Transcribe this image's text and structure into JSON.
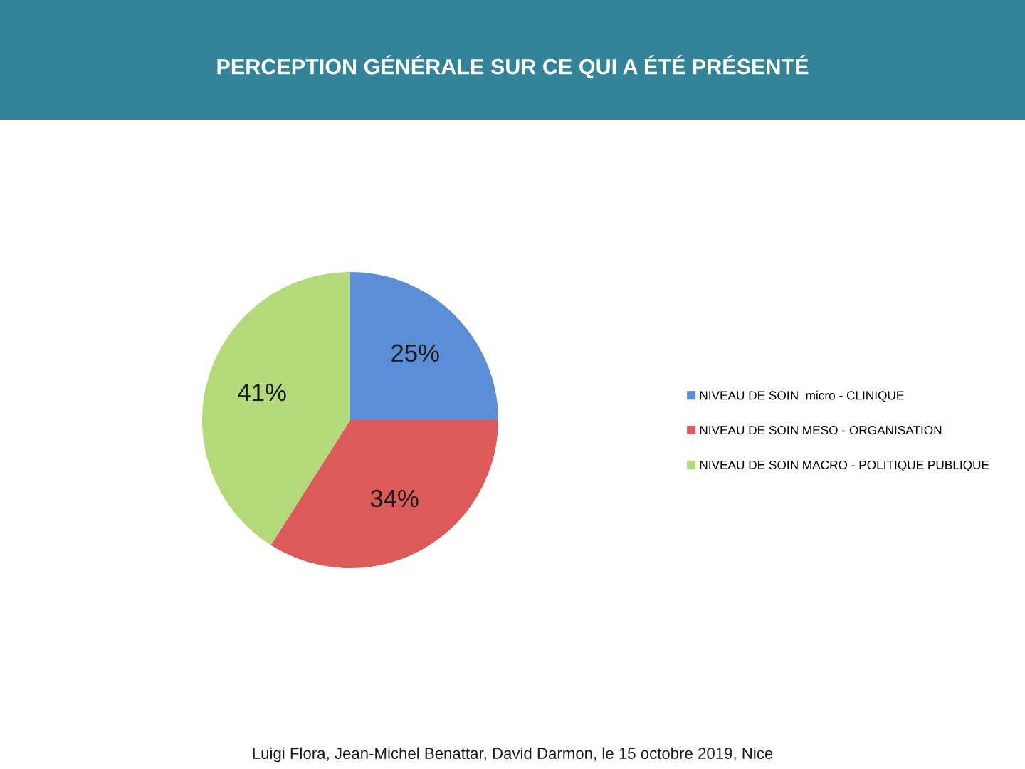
{
  "chart_data": {
    "type": "pie",
    "title": "PERCEPTION GÉNÉRALE SUR CE QUI A ÉTÉ PRÉSENTÉ",
    "categories": [
      "NIVEAU DE SOIN  micro - CLINIQUE",
      "NIVEAU DE SOIN MESO - ORGANISATION",
      "NIVEAU DE SOIN MACRO - POLITIQUE PUBLIQUE"
    ],
    "values": [
      25,
      34,
      41
    ],
    "value_labels": [
      "25%",
      "34%",
      "41%"
    ],
    "colors": [
      "#5b8ed6",
      "#dd5a5a",
      "#b3d97a"
    ],
    "legend": "right",
    "annotations": [
      "Luigi Flora, Jean-Michel Benattar, David Darmon, le 15 octobre 2019, Nice"
    ]
  }
}
